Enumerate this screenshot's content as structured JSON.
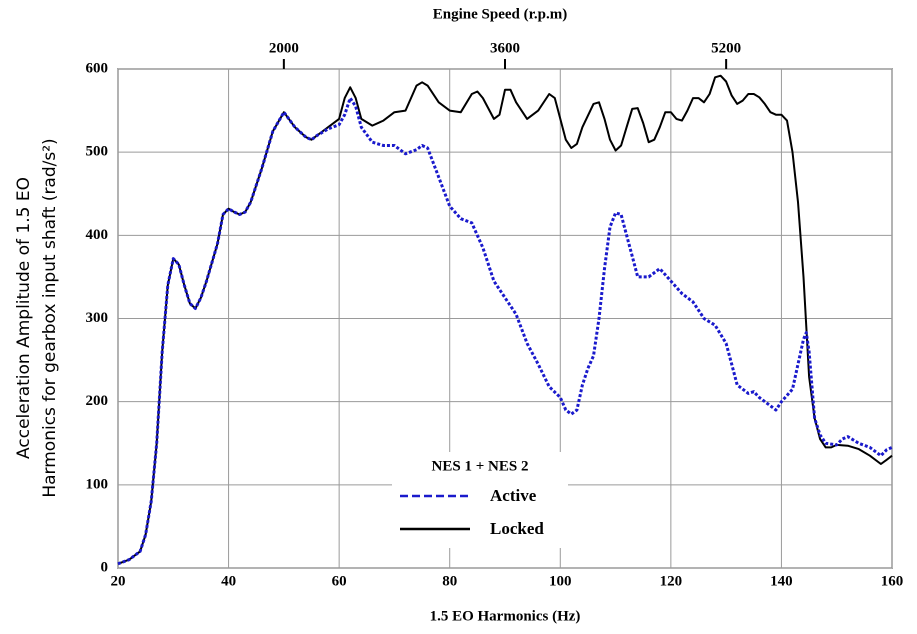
{
  "chart_data": {
    "type": "line",
    "title": "Engine Speed (r.p.m)",
    "x_label": "1.5 EO Harmonics (Hz)",
    "y_label": [
      "Acceleration Amplitude of 1.5 EO",
      "Harmonics for gearbox input shaft (rad/s²)"
    ],
    "xlim": [
      20,
      160
    ],
    "xticks": [
      20,
      40,
      60,
      80,
      100,
      120,
      140,
      160
    ],
    "ylim": [
      0,
      600
    ],
    "yticks": [
      0,
      100,
      200,
      300,
      400,
      500,
      600
    ],
    "x2lim": [
      800,
      6400
    ],
    "x2ticks": [
      2000,
      3600,
      5200
    ],
    "grid": true,
    "legend_title": "NES 1 + NES 2",
    "series": [
      {
        "name": "Active",
        "color": "#1a1acc",
        "dash": true,
        "x": [
          20,
          22,
          24,
          25,
          26,
          27,
          28,
          29,
          30,
          31,
          32,
          33,
          34,
          35,
          36,
          38,
          39,
          40,
          41,
          42,
          43,
          44,
          46,
          48,
          50,
          52,
          54,
          55,
          56,
          58,
          60,
          61,
          62,
          63,
          64,
          66,
          68,
          70,
          72,
          74,
          75,
          76,
          78,
          80,
          82,
          84,
          86,
          88,
          90,
          92,
          94,
          96,
          98,
          100,
          101,
          102,
          103,
          104,
          105,
          106,
          107,
          108,
          109,
          110,
          111,
          112,
          113,
          114,
          116,
          118,
          120,
          122,
          124,
          126,
          128,
          130,
          131,
          132,
          134,
          135,
          136,
          138,
          139,
          140,
          142,
          143,
          144,
          144.5,
          145,
          146,
          147,
          148,
          150,
          151,
          152,
          154,
          156,
          158,
          159,
          160
        ],
        "values": [
          5,
          10,
          20,
          40,
          80,
          150,
          260,
          340,
          372,
          365,
          340,
          318,
          312,
          325,
          345,
          390,
          425,
          432,
          428,
          425,
          428,
          440,
          480,
          525,
          548,
          530,
          518,
          515,
          520,
          528,
          533,
          545,
          565,
          555,
          530,
          512,
          508,
          508,
          498,
          503,
          508,
          505,
          470,
          435,
          420,
          415,
          385,
          345,
          325,
          305,
          270,
          245,
          218,
          205,
          190,
          185,
          190,
          220,
          240,
          255,
          300,
          360,
          410,
          427,
          425,
          400,
          375,
          350,
          350,
          360,
          345,
          330,
          320,
          300,
          292,
          270,
          245,
          220,
          210,
          212,
          205,
          195,
          190,
          200,
          215,
          245,
          275,
          283,
          260,
          180,
          160,
          150,
          148,
          155,
          158,
          150,
          145,
          135,
          142,
          145
        ]
      },
      {
        "name": "Locked",
        "color": "#000000",
        "dash": false,
        "x": [
          20,
          22,
          24,
          25,
          26,
          27,
          28,
          29,
          30,
          31,
          32,
          33,
          34,
          35,
          36,
          38,
          39,
          40,
          41,
          42,
          43,
          44,
          46,
          48,
          50,
          52,
          54,
          55,
          56,
          58,
          60,
          61,
          62,
          63,
          64,
          66,
          68,
          70,
          72,
          74,
          75,
          76,
          78,
          80,
          82,
          84,
          85,
          86,
          88,
          89,
          90,
          91,
          92,
          94,
          96,
          98,
          99,
          100,
          101,
          102,
          103,
          104,
          106,
          107,
          108,
          109,
          110,
          111,
          112,
          113,
          114,
          115,
          116,
          117,
          118,
          119,
          120,
          121,
          122,
          123,
          124,
          125,
          126,
          127,
          128,
          129,
          130,
          131,
          132,
          133,
          134,
          135,
          136,
          137,
          138,
          139,
          140,
          141,
          142,
          143,
          144,
          145,
          146,
          147,
          148,
          149,
          150,
          152,
          154,
          156,
          158,
          159,
          160
        ],
        "values": [
          5,
          10,
          20,
          40,
          80,
          150,
          260,
          340,
          372,
          365,
          340,
          318,
          312,
          325,
          345,
          390,
          425,
          432,
          428,
          425,
          428,
          440,
          480,
          525,
          548,
          530,
          518,
          515,
          520,
          530,
          540,
          565,
          578,
          565,
          540,
          532,
          538,
          548,
          550,
          580,
          584,
          580,
          560,
          550,
          548,
          570,
          573,
          565,
          540,
          545,
          575,
          575,
          560,
          540,
          550,
          570,
          565,
          540,
          515,
          505,
          510,
          530,
          558,
          560,
          540,
          515,
          502,
          508,
          530,
          552,
          553,
          535,
          512,
          515,
          530,
          548,
          548,
          540,
          538,
          550,
          565,
          565,
          560,
          570,
          590,
          592,
          585,
          568,
          558,
          562,
          570,
          570,
          566,
          558,
          548,
          545,
          545,
          538,
          500,
          440,
          350,
          230,
          180,
          155,
          145,
          145,
          148,
          147,
          143,
          135,
          125,
          130,
          135
        ]
      }
    ]
  }
}
